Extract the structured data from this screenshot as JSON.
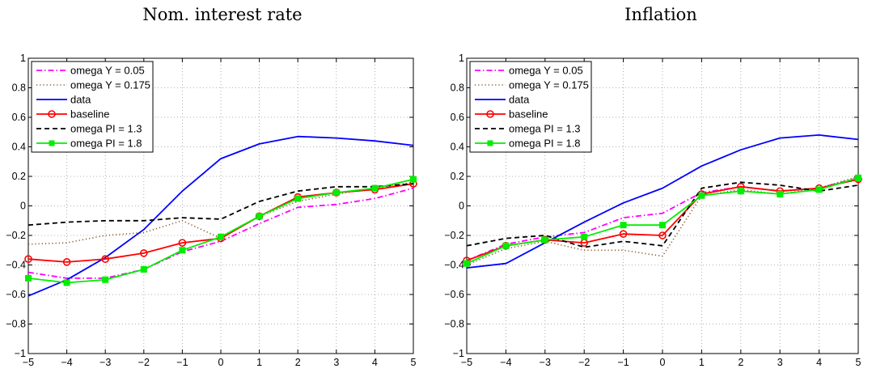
{
  "chart_data": [
    {
      "type": "line",
      "title": "Nom. interest rate",
      "xlabel": "",
      "ylabel": "",
      "xlim": [
        -5,
        5
      ],
      "ylim": [
        -1,
        1
      ],
      "x": [
        -5,
        -4,
        -3,
        -2,
        -1,
        0,
        1,
        2,
        3,
        4,
        5
      ],
      "xticks": [
        "−5",
        "−4",
        "−3",
        "−2",
        "−1",
        "0",
        "1",
        "2",
        "3",
        "4",
        "5"
      ],
      "yticks": [
        "−1",
        "−0.8",
        "−0.6",
        "−0.4",
        "−0.2",
        "0",
        "0.2",
        "0.4",
        "0.6",
        "0.8",
        "1"
      ],
      "grid": true,
      "legend_position": "top-left",
      "series": [
        {
          "name": "omega Y = 0.05",
          "color": "#ff00ff",
          "style": "dashdot",
          "marker": "none",
          "values": [
            -0.45,
            -0.49,
            -0.49,
            -0.43,
            -0.31,
            -0.24,
            -0.12,
            -0.01,
            0.01,
            0.05,
            0.12
          ]
        },
        {
          "name": "omega Y = 0.175",
          "color": "#8b5a2b",
          "style": "dotted",
          "marker": "none",
          "values": [
            -0.26,
            -0.25,
            -0.2,
            -0.18,
            -0.1,
            -0.22,
            -0.07,
            0.03,
            0.08,
            0.12,
            0.16
          ]
        },
        {
          "name": "data",
          "color": "#0000ff",
          "style": "solid",
          "marker": "none",
          "values": [
            -0.61,
            -0.5,
            -0.35,
            -0.16,
            0.1,
            0.32,
            0.42,
            0.47,
            0.46,
            0.44,
            0.41
          ]
        },
        {
          "name": "baseline",
          "color": "#ff0000",
          "style": "solid",
          "marker": "circle",
          "values": [
            -0.36,
            -0.38,
            -0.36,
            -0.32,
            -0.25,
            -0.22,
            -0.07,
            0.06,
            0.09,
            0.11,
            0.15
          ]
        },
        {
          "name": "omega PI = 1.3",
          "color": "#000000",
          "style": "dashed",
          "marker": "none",
          "values": [
            -0.13,
            -0.11,
            -0.1,
            -0.1,
            -0.08,
            -0.09,
            0.03,
            0.1,
            0.13,
            0.13,
            0.15
          ]
        },
        {
          "name": "omega PI = 1.8",
          "color": "#00ee00",
          "style": "solid",
          "marker": "square",
          "values": [
            -0.49,
            -0.52,
            -0.5,
            -0.43,
            -0.3,
            -0.21,
            -0.07,
            0.05,
            0.09,
            0.12,
            0.18
          ]
        }
      ]
    },
    {
      "type": "line",
      "title": "Inflation",
      "xlabel": "",
      "ylabel": "",
      "xlim": [
        -5,
        5
      ],
      "ylim": [
        -1,
        1
      ],
      "x": [
        -5,
        -4,
        -3,
        -2,
        -1,
        0,
        1,
        2,
        3,
        4,
        5
      ],
      "xticks": [
        "−5",
        "−4",
        "−3",
        "−2",
        "−1",
        "0",
        "1",
        "2",
        "3",
        "4",
        "5"
      ],
      "yticks": [
        "−1",
        "−0.8",
        "−0.6",
        "−0.4",
        "−0.2",
        "0",
        "0.2",
        "0.4",
        "0.6",
        "0.8",
        "1"
      ],
      "grid": true,
      "legend_position": "top-left",
      "series": [
        {
          "name": "omega Y = 0.05",
          "color": "#ff00ff",
          "style": "dashdot",
          "marker": "none",
          "values": [
            -0.37,
            -0.26,
            -0.21,
            -0.18,
            -0.08,
            -0.05,
            0.09,
            0.13,
            0.1,
            0.12,
            0.19
          ]
        },
        {
          "name": "omega Y = 0.175",
          "color": "#8b5a2b",
          "style": "dotted",
          "marker": "none",
          "values": [
            -0.4,
            -0.29,
            -0.24,
            -0.3,
            -0.3,
            -0.34,
            0.07,
            0.11,
            0.08,
            0.12,
            0.2
          ]
        },
        {
          "name": "data",
          "color": "#0000ff",
          "style": "solid",
          "marker": "none",
          "values": [
            -0.42,
            -0.39,
            -0.25,
            -0.11,
            0.02,
            0.12,
            0.27,
            0.38,
            0.46,
            0.48,
            0.45
          ]
        },
        {
          "name": "baseline",
          "color": "#ff0000",
          "style": "solid",
          "marker": "circle",
          "values": [
            -0.37,
            -0.27,
            -0.23,
            -0.25,
            -0.19,
            -0.2,
            0.08,
            0.13,
            0.1,
            0.12,
            0.18
          ]
        },
        {
          "name": "omega PI = 1.3",
          "color": "#000000",
          "style": "dashed",
          "marker": "none",
          "values": [
            -0.27,
            -0.22,
            -0.2,
            -0.28,
            -0.24,
            -0.27,
            0.12,
            0.16,
            0.14,
            0.1,
            0.14
          ]
        },
        {
          "name": "omega PI = 1.8",
          "color": "#00ee00",
          "style": "solid",
          "marker": "square",
          "values": [
            -0.39,
            -0.27,
            -0.23,
            -0.21,
            -0.13,
            -0.13,
            0.07,
            0.1,
            0.08,
            0.11,
            0.19
          ]
        }
      ]
    }
  ]
}
